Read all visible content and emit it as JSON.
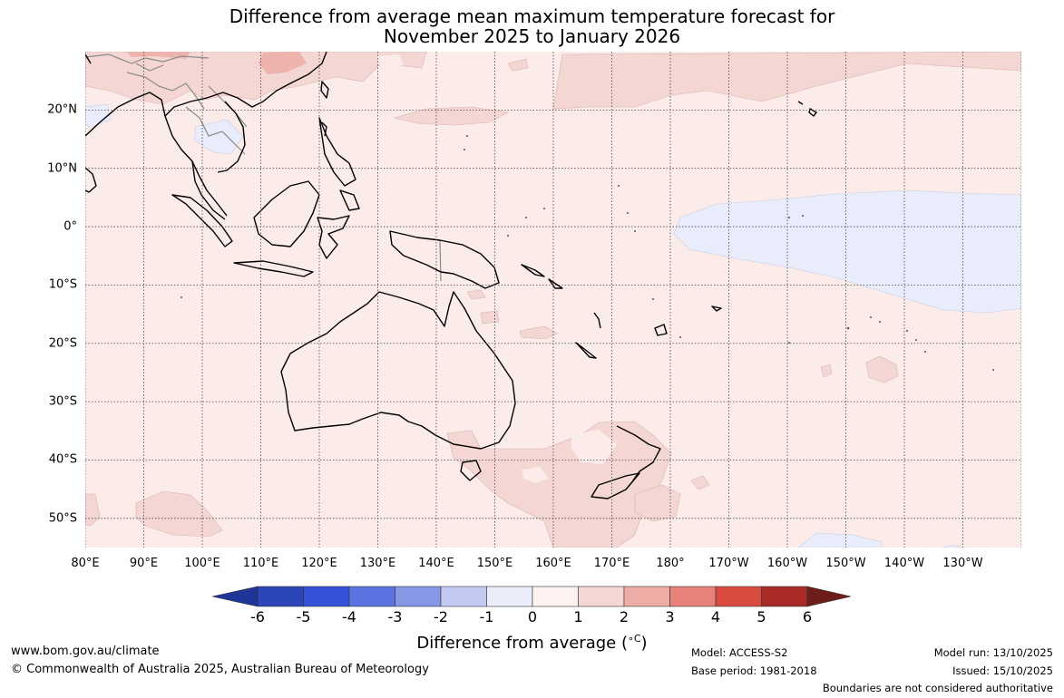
{
  "title": {
    "line1": "Difference from average mean maximum temperature forecast for",
    "line2": "November 2025 to January 2026"
  },
  "map": {
    "lon_labels": [
      "80°E",
      "90°E",
      "100°E",
      "110°E",
      "120°E",
      "130°E",
      "140°E",
      "150°E",
      "160°E",
      "170°E",
      "180°",
      "170°W",
      "160°W",
      "150°W",
      "140°W",
      "130°W"
    ],
    "lat_labels": [
      "20°N",
      "10°N",
      "0°",
      "10°S",
      "20°S",
      "30°S",
      "40°S",
      "50°S"
    ],
    "lon_range": [
      80,
      240
    ],
    "lat_range": [
      -55,
      30
    ],
    "colors": {
      "ocean_base": "#fbecea",
      "warm_1_2": "#f4d6d3",
      "warm_2_3": "#eeb3ad",
      "cool_0_m1": "#e8ecfb",
      "coast": "#000000",
      "border": "#8a8a8a"
    }
  },
  "colorbar": {
    "tick_labels": [
      "-6",
      "-5",
      "-4",
      "-3",
      "-2",
      "-1",
      "0",
      "1",
      "2",
      "3",
      "4",
      "5",
      "6"
    ],
    "colors": [
      "#1f3598",
      "#2a46b8",
      "#3352d8",
      "#5a73e0",
      "#8697e6",
      "#c2caf2",
      "#ebedfb",
      "#fdf2f1",
      "#f4d6d3",
      "#eeaea7",
      "#e78179",
      "#d94a40",
      "#a92b27",
      "#6e1d1a"
    ],
    "title": "Difference from average (",
    "title_unit": "∘C",
    "title_close": ")"
  },
  "footer": {
    "website": "www.bom.gov.au/climate",
    "copyright": "© Commonwealth of Australia 2025, Australian Bureau of Meteorology",
    "model": "Model: ACCESS-S2",
    "base_period": "Base period: 1981-2018",
    "model_run": "Model run: 13/10/2025",
    "issued": "Issued: 15/10/2025",
    "boundaries": "Boundaries are not considered authoritative"
  }
}
